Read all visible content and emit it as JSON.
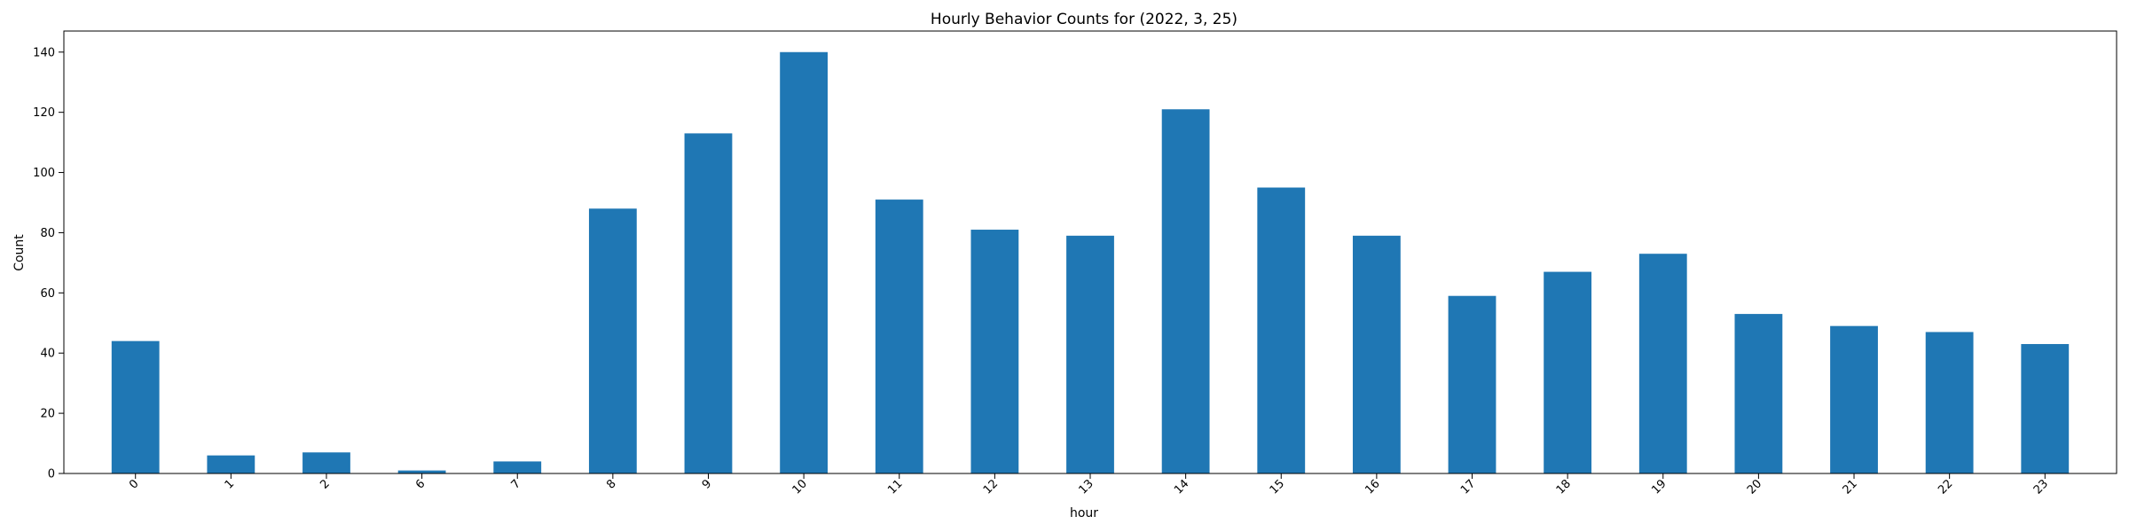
{
  "chart_data": {
    "type": "bar",
    "title": "Hourly Behavior Counts for (2022, 3, 25)",
    "xlabel": "hour",
    "ylabel": "Count",
    "categories": [
      "0",
      "1",
      "2",
      "6",
      "7",
      "8",
      "9",
      "10",
      "11",
      "12",
      "13",
      "14",
      "15",
      "16",
      "17",
      "18",
      "19",
      "20",
      "21",
      "22",
      "23"
    ],
    "values": [
      44,
      6,
      7,
      1,
      4,
      88,
      113,
      140,
      91,
      81,
      79,
      121,
      95,
      79,
      59,
      67,
      73,
      53,
      49,
      47,
      43
    ],
    "ylim": [
      0,
      147
    ],
    "yticks": [
      0,
      20,
      40,
      60,
      80,
      100,
      120,
      140
    ],
    "bar_color": "#1f77b4",
    "grid": false,
    "legend": false
  }
}
